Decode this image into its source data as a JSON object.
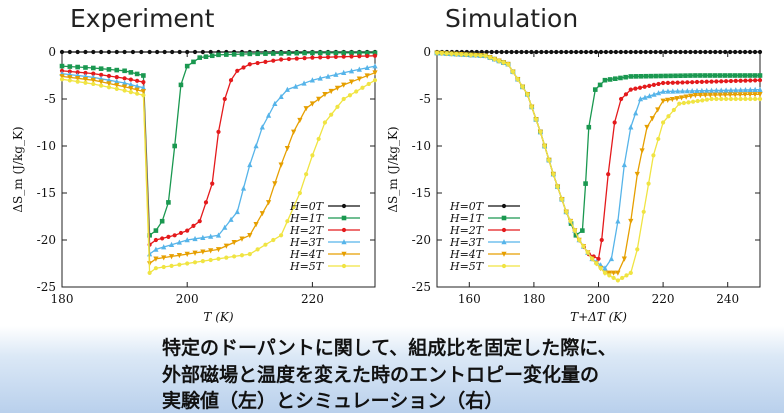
{
  "titles": {
    "experiment": "Experiment",
    "simulation": "Simulation"
  },
  "caption": {
    "line1": "特定のドーパントに関して、組成比を固定した際に、",
    "line2": "外部磁場と温度を変えた時のエントロピー変化量の",
    "line3": "実験値（左）とシミュレーション（右）"
  },
  "colors": {
    "H=0T": "#111111",
    "H=1T": "#1a9850",
    "H=2T": "#e41a1c",
    "H=3T": "#56b4e9",
    "H=4T": "#e69f00",
    "H=5T": "#f0e442"
  },
  "chart_data": [
    {
      "type": "line",
      "title": "Experiment",
      "xlabel": "T (K)",
      "ylabel": "ΔS_m (J/kg_K)",
      "xlim": [
        180,
        230
      ],
      "ylim": [
        -25,
        0
      ],
      "xticks": [
        180,
        200,
        220
      ],
      "yticks": [
        0,
        -5,
        -10,
        -15,
        -20,
        -25
      ],
      "grid": false,
      "legend_position": "lower-right",
      "series": [
        {
          "name": "H=0T",
          "x": [
            180,
            190,
            194,
            200,
            210,
            220,
            230
          ],
          "y": [
            0,
            0,
            0,
            0,
            0,
            0,
            0
          ]
        },
        {
          "name": "H=1T",
          "x": [
            180,
            185,
            190,
            193,
            194,
            195,
            196,
            197,
            198,
            199,
            200,
            202,
            205,
            210,
            220,
            230
          ],
          "y": [
            -1.5,
            -1.7,
            -2.0,
            -2.5,
            -19.5,
            -19,
            -18,
            -16,
            -10,
            -3.5,
            -1.5,
            -0.6,
            -0.3,
            -0.2,
            -0.1,
            -0.1
          ]
        },
        {
          "name": "H=2T",
          "x": [
            180,
            185,
            190,
            193,
            194,
            195,
            198,
            200,
            202,
            204,
            205,
            206,
            207,
            208,
            210,
            215,
            220,
            230
          ],
          "y": [
            -2.0,
            -2.3,
            -2.8,
            -3.2,
            -20.5,
            -20,
            -19.5,
            -19,
            -18,
            -14,
            -8.5,
            -5,
            -3,
            -2,
            -1.3,
            -0.8,
            -0.6,
            -0.4
          ]
        },
        {
          "name": "H=3T",
          "x": [
            180,
            185,
            190,
            193,
            194,
            195,
            200,
            205,
            208,
            210,
            212,
            214,
            216,
            220,
            225,
            230
          ],
          "y": [
            -2.3,
            -2.7,
            -3.3,
            -3.8,
            -21.5,
            -21,
            -20,
            -19.5,
            -17,
            -12,
            -8,
            -5.5,
            -4,
            -3,
            -2.2,
            -1.5
          ]
        },
        {
          "name": "H=4T",
          "x": [
            180,
            185,
            190,
            193,
            194,
            195,
            200,
            205,
            210,
            213,
            215,
            217,
            219,
            222,
            225,
            230
          ],
          "y": [
            -2.6,
            -3.0,
            -3.7,
            -4.2,
            -22.5,
            -22,
            -21.5,
            -21,
            -19.5,
            -16,
            -12,
            -8.5,
            -6,
            -4.5,
            -3.5,
            -2.2
          ]
        },
        {
          "name": "H=5T",
          "x": [
            180,
            185,
            190,
            193,
            194,
            195,
            200,
            205,
            210,
            215,
            218,
            220,
            222,
            225,
            228,
            230
          ],
          "y": [
            -2.9,
            -3.4,
            -4.1,
            -4.6,
            -23.5,
            -23,
            -22.5,
            -22,
            -21.5,
            -19.5,
            -15,
            -11,
            -7.5,
            -5,
            -3.8,
            -3.0
          ]
        }
      ]
    },
    {
      "type": "line",
      "title": "Simulation",
      "xlabel": "T+ΔT (K)",
      "ylabel": "ΔS_m (J/kg_K)",
      "xlim": [
        150,
        250
      ],
      "ylim": [
        -25,
        0
      ],
      "xticks": [
        160,
        180,
        200,
        220,
        240
      ],
      "yticks": [
        0,
        -5,
        -10,
        -15,
        -20,
        -25
      ],
      "grid": false,
      "legend_position": "lower-left",
      "series": [
        {
          "name": "H=0T",
          "x": [
            150,
            170,
            190,
            210,
            230,
            250
          ],
          "y": [
            0,
            0,
            0,
            0,
            0,
            0
          ]
        },
        {
          "name": "H=1T",
          "x": [
            150,
            165,
            172,
            178,
            182,
            186,
            190,
            193,
            195,
            196,
            197,
            199,
            202,
            210,
            230,
            250
          ],
          "y": [
            -0.1,
            -0.4,
            -1.3,
            -4.5,
            -8.5,
            -13,
            -17,
            -19.5,
            -19.0,
            -14,
            -8,
            -4,
            -3,
            -2.6,
            -2.5,
            -2.5
          ]
        },
        {
          "name": "H=2T",
          "x": [
            150,
            165,
            172,
            178,
            182,
            186,
            190,
            194,
            197,
            200,
            201,
            203,
            205,
            207,
            210,
            220,
            250
          ],
          "y": [
            -0.1,
            -0.4,
            -1.3,
            -4.5,
            -8.5,
            -13,
            -17,
            -20,
            -21.5,
            -22,
            -20,
            -13,
            -7.5,
            -5,
            -4,
            -3.3,
            -3.0
          ]
        },
        {
          "name": "H=3T",
          "x": [
            150,
            165,
            172,
            178,
            182,
            186,
            190,
            194,
            198,
            202,
            204,
            206,
            208,
            210,
            213,
            220,
            250
          ],
          "y": [
            -0.1,
            -0.4,
            -1.3,
            -4.5,
            -8.5,
            -13,
            -17,
            -20,
            -22,
            -23,
            -22,
            -18,
            -12,
            -8,
            -5,
            -4.2,
            -4.0
          ]
        },
        {
          "name": "H=4T",
          "x": [
            150,
            165,
            172,
            178,
            182,
            186,
            190,
            194,
            198,
            202,
            206,
            208,
            210,
            212,
            215,
            220,
            230,
            250
          ],
          "y": [
            -0.1,
            -0.4,
            -1.3,
            -4.5,
            -8.5,
            -13,
            -17,
            -20,
            -22,
            -23.5,
            -23.5,
            -22,
            -18,
            -13,
            -8,
            -5.2,
            -4.6,
            -4.5
          ]
        },
        {
          "name": "H=5T",
          "x": [
            150,
            165,
            172,
            178,
            182,
            186,
            190,
            194,
            198,
            202,
            206,
            210,
            212,
            214,
            217,
            220,
            225,
            235,
            250
          ],
          "y": [
            -0.1,
            -0.4,
            -1.3,
            -4.5,
            -8.5,
            -13,
            -17,
            -20,
            -22,
            -23.5,
            -24.3,
            -23.5,
            -21,
            -17,
            -11,
            -7.5,
            -5.5,
            -5.0,
            -5.0
          ]
        }
      ]
    }
  ]
}
